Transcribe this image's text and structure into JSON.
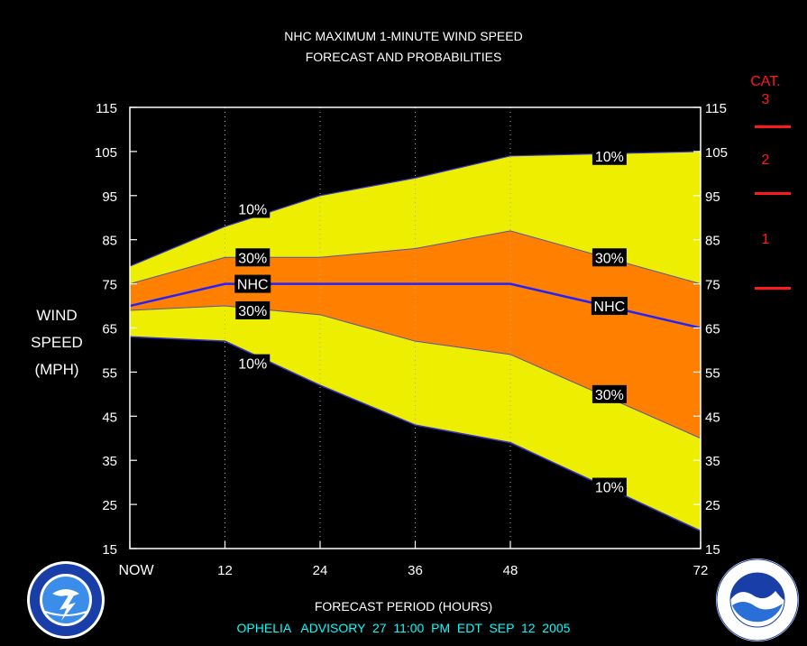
{
  "title_line1": "NHC MAXIMUM 1-MINUTE WIND SPEED",
  "title_line2": "FORECAST AND PROBABILITIES",
  "ylabel_lines": [
    "WIND",
    "SPEED",
    "(MPH)"
  ],
  "xlabel": "FORECAST PERIOD (HOURS)",
  "advisory": "OPHELIA   ADVISORY  27  11:00  PM  EDT  SEP  12  2005",
  "category": {
    "header": "CAT.",
    "labels": [
      "3",
      "2",
      "1"
    ]
  },
  "colors": {
    "band_10": "#eeee00",
    "band_30": "#ff8000",
    "nhc_line": "#2222ff",
    "boundary": "#3333cc",
    "category": "#ff1a1a",
    "advisory": "#00ffff"
  },
  "logos": {
    "left": "nws-logo",
    "right": "noaa-logo"
  },
  "chart_data": {
    "type": "area",
    "x": [
      0,
      12,
      24,
      36,
      48,
      72
    ],
    "x_tick_labels": [
      "NOW",
      "12",
      "24",
      "36",
      "48",
      "72"
    ],
    "ylim": [
      15,
      115
    ],
    "y_ticks": [
      15,
      25,
      35,
      45,
      55,
      65,
      75,
      85,
      95,
      105,
      115
    ],
    "series": [
      {
        "name": "10%",
        "values": [
          79,
          88,
          95,
          99,
          104,
          105
        ]
      },
      {
        "name": "30%",
        "values": [
          75,
          81,
          81,
          83,
          87,
          75
        ]
      },
      {
        "name": "NHC",
        "values": [
          70,
          75,
          75,
          75,
          75,
          65
        ]
      },
      {
        "name": "30%",
        "values": [
          69,
          70,
          68,
          62,
          59,
          40
        ]
      },
      {
        "name": "10%",
        "values": [
          63,
          62,
          52,
          43,
          39,
          19
        ]
      }
    ],
    "labels": [
      {
        "text": "10%",
        "x": 15.5,
        "y": 92
      },
      {
        "text": "30%",
        "x": 15.5,
        "y": 81
      },
      {
        "text": "NHC",
        "x": 15.5,
        "y": 75
      },
      {
        "text": "30%",
        "x": 15.5,
        "y": 69
      },
      {
        "text": "10%",
        "x": 15.5,
        "y": 57
      },
      {
        "text": "10%",
        "x": 60.5,
        "y": 104
      },
      {
        "text": "30%",
        "x": 60.5,
        "y": 81
      },
      {
        "text": "NHC",
        "x": 60.5,
        "y": 70
      },
      {
        "text": "30%",
        "x": 60.5,
        "y": 50
      },
      {
        "text": "10%",
        "x": 60.5,
        "y": 29
      }
    ],
    "grid": "vertical-dotted"
  }
}
